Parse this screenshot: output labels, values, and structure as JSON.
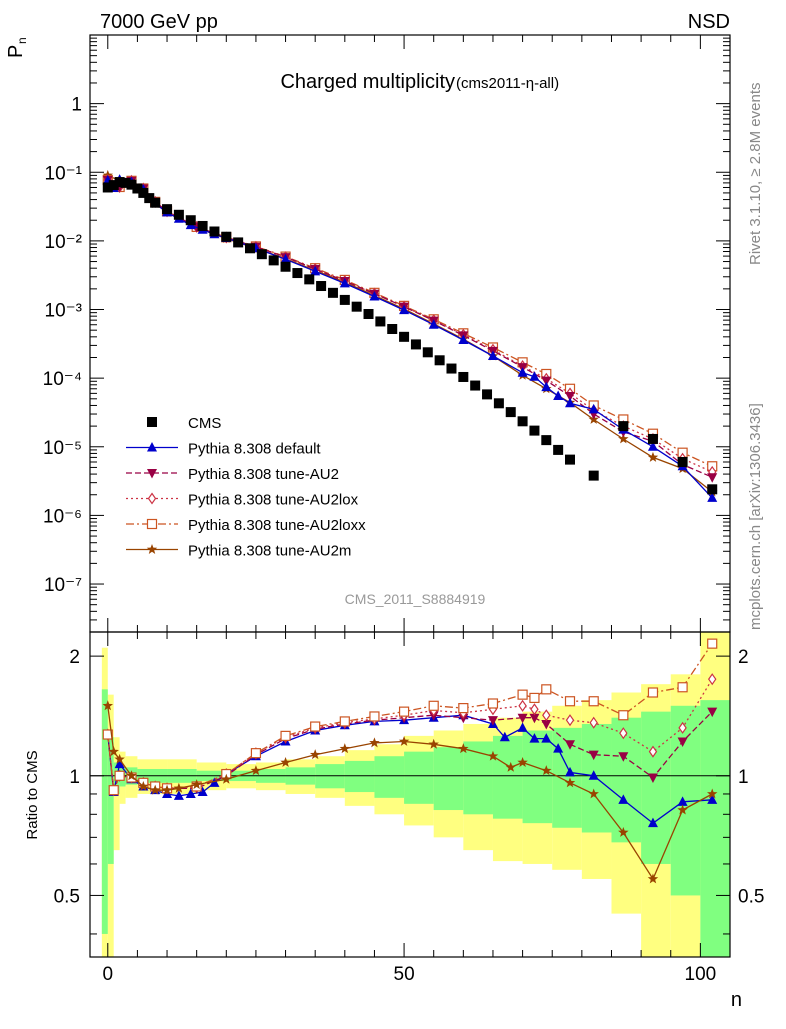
{
  "header": {
    "left": "7000 GeV pp",
    "right": "NSD"
  },
  "side_text": {
    "rivet": "Rivet 3.1.10, ≥ 2.8M events",
    "mcplots": "mcplots.cern.ch [arXiv:1306.3436]"
  },
  "chart_data": [
    {
      "panel": "main",
      "type": "line",
      "title": "Charged multiplicity",
      "title_sub": "(cms2011-η-all)",
      "ylabel": "P",
      "ylabel_sub": "n",
      "xlabel": "n",
      "y_scale": "log",
      "ylim": [
        2e-08,
        10
      ],
      "xlim": [
        -3,
        105
      ],
      "watermark": "CMS_2011_S8884919",
      "legend_position": "lower-left",
      "y_tick_labels": [
        "10⁻⁷",
        "10⁻⁶",
        "10⁻⁵",
        "10⁻⁴",
        "10⁻³",
        "10⁻²",
        "10⁻¹",
        "1"
      ],
      "y_tick_values": [
        1e-07,
        1e-06,
        1e-05,
        0.0001,
        0.001,
        0.01,
        0.1,
        1
      ],
      "series": [
        {
          "name": "CMS",
          "color": "#000000",
          "marker": "square-filled",
          "line": "none",
          "x": [
            0,
            1,
            2,
            3,
            4,
            5,
            6,
            7,
            8,
            10,
            12,
            14,
            16,
            18,
            20,
            22,
            24,
            26,
            28,
            30,
            32,
            34,
            36,
            38,
            40,
            42,
            44,
            46,
            48,
            50,
            52,
            54,
            56,
            58,
            60,
            62,
            64,
            66,
            68,
            70,
            72,
            74,
            76,
            78,
            82,
            87,
            92,
            97,
            102
          ],
          "y": [
            0.06,
            0.065,
            0.072,
            0.07,
            0.066,
            0.058,
            0.05,
            0.042,
            0.036,
            0.029,
            0.024,
            0.02,
            0.0165,
            0.0137,
            0.0115,
            0.0095,
            0.0078,
            0.0064,
            0.0052,
            0.0042,
            0.0034,
            0.00275,
            0.0022,
            0.00175,
            0.00138,
            0.0011,
            0.00086,
            0.00067,
            0.00052,
            0.0004,
            0.00031,
            0.000238,
            0.000182,
            0.000138,
            0.000104,
            7.8e-05,
            5.8e-05,
            4.3e-05,
            3.2e-05,
            2.35e-05,
            1.72e-05,
            1.25e-05,
            9e-06,
            6.5e-06,
            3.8e-06,
            2e-05,
            1.3e-05,
            6e-06,
            2.4e-06
          ]
        },
        {
          "name": "Pythia 8.308 default",
          "color": "#0000cc",
          "marker": "triangle-up-filled",
          "line": "solid",
          "x": [
            0,
            1,
            2,
            4,
            6,
            8,
            10,
            12,
            14,
            16,
            18,
            20,
            25,
            30,
            35,
            40,
            45,
            50,
            55,
            60,
            65,
            70,
            72,
            74,
            76,
            78,
            82,
            87,
            92,
            97,
            102
          ],
          "y": [
            0.076,
            0.059,
            0.078,
            0.072,
            0.056,
            0.035,
            0.026,
            0.021,
            0.017,
            0.0145,
            0.0125,
            0.011,
            0.0078,
            0.0054,
            0.0036,
            0.0024,
            0.00155,
            0.00098,
            0.0006,
            0.00036,
            0.00021,
            0.00012,
            0.000105,
            7.4e-05,
            5.5e-05,
            4.3e-05,
            3.5e-05,
            1.78e-05,
            1e-05,
            5.2e-06,
            1.8e-06
          ]
        },
        {
          "name": "Pythia 8.308 tune-AU2",
          "color": "#990044",
          "marker": "triangle-down-filled",
          "line": "dashed",
          "x": [
            0,
            2,
            4,
            6,
            8,
            10,
            15,
            20,
            25,
            30,
            35,
            40,
            45,
            50,
            55,
            60,
            65,
            70,
            74,
            78,
            82,
            87,
            92,
            97,
            102
          ],
          "y": [
            0.077,
            0.062,
            0.075,
            0.058,
            0.037,
            0.027,
            0.016,
            0.0112,
            0.0082,
            0.0058,
            0.0039,
            0.0026,
            0.0017,
            0.0011,
            0.00069,
            0.00042,
            0.00025,
            0.000145,
            9.2e-05,
            5.5e-05,
            3e-05,
            1.65e-05,
            1.2e-05,
            5.5e-06,
            3.6e-06
          ]
        },
        {
          "name": "Pythia 8.308 tune-AU2lox",
          "color": "#cc3344",
          "marker": "diamond-open",
          "line": "dotted",
          "x": [
            0,
            2,
            4,
            6,
            8,
            10,
            15,
            20,
            25,
            30,
            35,
            40,
            45,
            50,
            55,
            60,
            65,
            70,
            74,
            78,
            82,
            87,
            92,
            97,
            102
          ],
          "y": [
            0.077,
            0.061,
            0.075,
            0.058,
            0.037,
            0.027,
            0.016,
            0.0112,
            0.0082,
            0.0058,
            0.0039,
            0.0026,
            0.0017,
            0.0011,
            0.0007,
            0.00043,
            0.00026,
            0.00015,
            9.8e-05,
            6e-05,
            3.4e-05,
            2e-05,
            1.3e-05,
            6.7e-06,
            4.3e-06
          ]
        },
        {
          "name": "Pythia 8.308 tune-AU2loxx",
          "color": "#cc5522",
          "marker": "square-open",
          "line": "dash-dot",
          "x": [
            0,
            2,
            4,
            6,
            8,
            10,
            15,
            20,
            25,
            30,
            35,
            40,
            45,
            50,
            55,
            60,
            65,
            70,
            74,
            78,
            82,
            87,
            92,
            97,
            102
          ],
          "y": [
            0.077,
            0.061,
            0.075,
            0.058,
            0.037,
            0.027,
            0.016,
            0.0113,
            0.0083,
            0.0059,
            0.004,
            0.0027,
            0.00175,
            0.00113,
            0.00072,
            0.00045,
            0.00028,
            0.00017,
            0.000115,
            7e-05,
            4e-05,
            2.5e-05,
            1.55e-05,
            8.2e-06,
            5.2e-06
          ]
        },
        {
          "name": "Pythia 8.308 tune-AU2m",
          "color": "#994400",
          "marker": "star",
          "line": "solid",
          "x": [
            0,
            2,
            4,
            6,
            8,
            10,
            15,
            20,
            25,
            30,
            35,
            40,
            45,
            50,
            55,
            60,
            65,
            70,
            74,
            78,
            82,
            87,
            92,
            97,
            102
          ],
          "y": [
            0.09,
            0.075,
            0.072,
            0.056,
            0.035,
            0.026,
            0.0155,
            0.0108,
            0.0078,
            0.0055,
            0.0037,
            0.0025,
            0.0016,
            0.00102,
            0.00062,
            0.00037,
            0.00021,
            0.00011,
            7e-05,
            4.4e-05,
            2.5e-05,
            1.3e-05,
            7e-06,
            4.8e-06,
            2.2e-06
          ]
        }
      ]
    },
    {
      "panel": "ratio",
      "type": "line",
      "ylabel": "Ratio to CMS",
      "xlabel": "n",
      "ylim": [
        0.35,
        2.3
      ],
      "y_scale": "log",
      "xlim": [
        -3,
        105
      ],
      "x_tick_labels": [
        "0",
        "50",
        "100"
      ],
      "x_tick_values": [
        0,
        50,
        100
      ],
      "y_tick_labels": [
        "0.5",
        "1",
        "2"
      ],
      "y_tick_values": [
        0.5,
        1,
        2
      ],
      "reference_line": 1,
      "bands": [
        {
          "name": "yellow-band",
          "color": "#ffff80",
          "edges": [
            -1,
            0,
            1,
            2,
            3,
            5,
            10,
            15,
            20,
            25,
            30,
            35,
            40,
            45,
            50,
            55,
            60,
            65,
            70,
            75,
            80,
            85,
            90,
            95,
            100,
            105
          ],
          "upper": [
            2.1,
            1.6,
            1.25,
            1.15,
            1.12,
            1.1,
            1.1,
            1.08,
            1.07,
            1.08,
            1.1,
            1.12,
            1.16,
            1.2,
            1.26,
            1.3,
            1.35,
            1.4,
            1.45,
            1.5,
            1.55,
            1.62,
            1.7,
            1.8,
            2.3
          ],
          "lower": [
            0.3,
            0.3,
            0.65,
            0.85,
            0.88,
            0.9,
            0.9,
            0.92,
            0.93,
            0.92,
            0.9,
            0.88,
            0.84,
            0.8,
            0.75,
            0.7,
            0.65,
            0.61,
            0.6,
            0.58,
            0.55,
            0.45,
            0.35,
            0.35,
            0.35
          ]
        },
        {
          "name": "green-band",
          "color": "#80ff80",
          "edges": [
            -1,
            0,
            1,
            2,
            3,
            5,
            10,
            15,
            20,
            25,
            30,
            35,
            40,
            45,
            50,
            55,
            60,
            65,
            70,
            75,
            80,
            85,
            90,
            95,
            100,
            105
          ],
          "upper": [
            1.65,
            1.25,
            1.08,
            1.05,
            1.05,
            1.04,
            1.04,
            1.03,
            1.03,
            1.04,
            1.05,
            1.07,
            1.09,
            1.12,
            1.15,
            1.18,
            1.22,
            1.26,
            1.3,
            1.32,
            1.35,
            1.4,
            1.45,
            1.5,
            1.55
          ],
          "lower": [
            0.4,
            0.6,
            0.9,
            0.94,
            0.95,
            0.96,
            0.96,
            0.97,
            0.97,
            0.96,
            0.95,
            0.93,
            0.91,
            0.88,
            0.85,
            0.82,
            0.8,
            0.78,
            0.76,
            0.74,
            0.72,
            0.68,
            0.6,
            0.5,
            0.35
          ]
        }
      ],
      "series": [
        {
          "name": "Pythia 8.308 default",
          "color": "#0000cc",
          "marker": "triangle-up-filled",
          "line": "solid",
          "x": [
            0,
            1,
            2,
            4,
            6,
            8,
            10,
            12,
            14,
            16,
            18,
            20,
            25,
            30,
            35,
            40,
            45,
            50,
            55,
            60,
            65,
            67,
            70,
            72,
            74,
            76,
            78,
            82,
            87,
            92,
            97,
            102
          ],
          "y": [
            1.27,
            0.91,
            1.07,
            0.98,
            0.94,
            0.92,
            0.9,
            0.89,
            0.9,
            0.91,
            0.96,
            1.01,
            1.12,
            1.22,
            1.3,
            1.34,
            1.37,
            1.38,
            1.4,
            1.42,
            1.35,
            1.25,
            1.32,
            1.24,
            1.24,
            1.17,
            1.02,
            1.0,
            0.87,
            0.76,
            0.86,
            0.87
          ]
        },
        {
          "name": "Pythia 8.308 tune-AU2",
          "color": "#990044",
          "marker": "triangle-down-filled",
          "line": "dashed",
          "x": [
            0,
            1,
            2,
            4,
            6,
            8,
            10,
            15,
            20,
            25,
            30,
            35,
            40,
            45,
            50,
            55,
            60,
            65,
            70,
            72,
            74,
            78,
            82,
            87,
            92,
            97,
            102
          ],
          "y": [
            1.27,
            0.92,
            1.0,
            0.99,
            0.96,
            0.94,
            0.93,
            0.93,
            1.0,
            1.13,
            1.24,
            1.31,
            1.35,
            1.38,
            1.4,
            1.42,
            1.4,
            1.38,
            1.4,
            1.4,
            1.35,
            1.2,
            1.13,
            1.12,
            0.99,
            1.22,
            1.45
          ]
        },
        {
          "name": "Pythia 8.308 tune-AU2lox",
          "color": "#cc3344",
          "marker": "diamond-open",
          "line": "dotted",
          "x": [
            0,
            1,
            2,
            4,
            6,
            8,
            10,
            15,
            20,
            25,
            30,
            35,
            40,
            45,
            50,
            55,
            60,
            65,
            70,
            72,
            74,
            78,
            82,
            87,
            92,
            97,
            102
          ],
          "y": [
            1.27,
            0.92,
            1.0,
            0.99,
            0.96,
            0.94,
            0.93,
            0.94,
            1.01,
            1.14,
            1.25,
            1.32,
            1.36,
            1.39,
            1.42,
            1.46,
            1.44,
            1.47,
            1.5,
            1.47,
            1.42,
            1.38,
            1.36,
            1.28,
            1.15,
            1.32,
            1.75
          ]
        },
        {
          "name": "Pythia 8.308 tune-AU2loxx",
          "color": "#cc5522",
          "marker": "square-open",
          "line": "dash-dot",
          "x": [
            0,
            1,
            2,
            4,
            6,
            8,
            10,
            15,
            20,
            25,
            30,
            35,
            40,
            45,
            50,
            55,
            60,
            65,
            70,
            72,
            74,
            78,
            82,
            87,
            92,
            97,
            102
          ],
          "y": [
            1.27,
            0.92,
            1.0,
            0.99,
            0.96,
            0.94,
            0.93,
            0.94,
            1.01,
            1.14,
            1.26,
            1.33,
            1.37,
            1.41,
            1.45,
            1.5,
            1.48,
            1.52,
            1.6,
            1.57,
            1.65,
            1.54,
            1.54,
            1.42,
            1.62,
            1.67,
            2.15
          ]
        },
        {
          "name": "Pythia 8.308 tune-AU2m",
          "color": "#994400",
          "marker": "star",
          "line": "solid",
          "x": [
            0,
            1,
            2,
            4,
            6,
            8,
            10,
            12,
            15,
            20,
            25,
            30,
            35,
            40,
            45,
            50,
            55,
            60,
            65,
            68,
            70,
            74,
            78,
            82,
            87,
            92,
            97,
            102
          ],
          "y": [
            1.5,
            1.15,
            1.1,
            1.0,
            0.94,
            0.92,
            0.92,
            0.93,
            0.95,
            0.98,
            1.03,
            1.08,
            1.13,
            1.17,
            1.21,
            1.22,
            1.2,
            1.17,
            1.12,
            1.05,
            1.08,
            1.03,
            0.96,
            0.9,
            0.72,
            0.55,
            0.82,
            0.9
          ]
        }
      ]
    }
  ]
}
